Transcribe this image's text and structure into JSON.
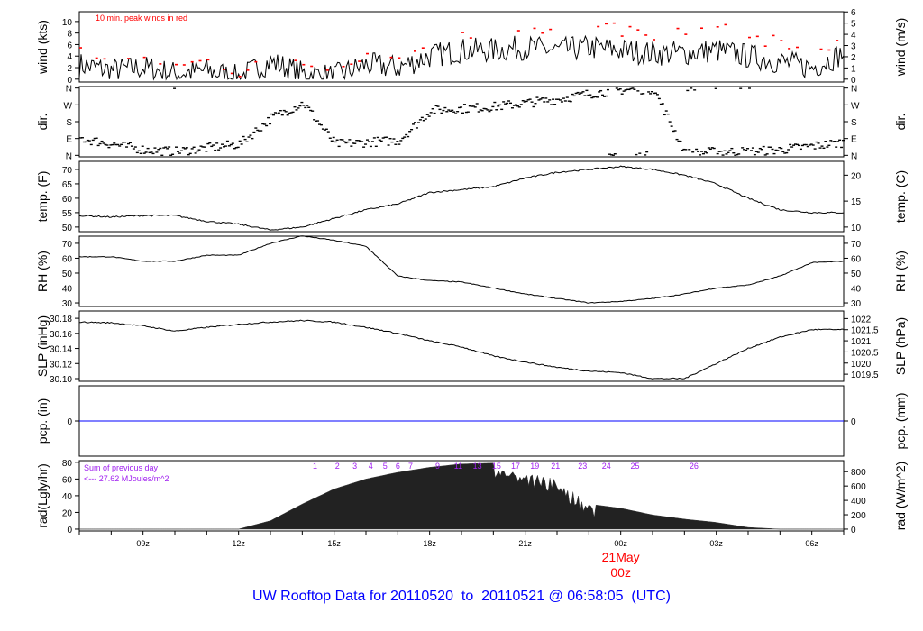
{
  "title": "UW Rooftop Data for 20110520  to  20110521 @ 06:58:05  (UTC)",
  "date_marker": {
    "day": "21May",
    "hour": "00z",
    "color": "#ff0000"
  },
  "wind_note": "10 min. peak winds in red",
  "rad_note": {
    "line1": "Sum of previous day",
    "line2": "<--- 27.62 MJoules/m^2",
    "color": "#a020f0"
  },
  "chart_data": {
    "type": "line",
    "x_unit": "hours UTC from 07:00z 20110520",
    "xlim": [
      0,
      24
    ],
    "x_ticks": [
      {
        "t": 2,
        "label": "09z"
      },
      {
        "t": 5,
        "label": "12z"
      },
      {
        "t": 8,
        "label": "15z"
      },
      {
        "t": 11,
        "label": "18z"
      },
      {
        "t": 14,
        "label": "21z"
      },
      {
        "t": 17,
        "label": "00z"
      },
      {
        "t": 20,
        "label": "03z"
      },
      {
        "t": 23,
        "label": "06z"
      }
    ],
    "hours": [
      0,
      1,
      2,
      3,
      4,
      5,
      6,
      7,
      8,
      9,
      10,
      11,
      12,
      13,
      14,
      15,
      16,
      17,
      18,
      19,
      20,
      21,
      22,
      23,
      24
    ],
    "panels": [
      {
        "id": "wind",
        "ylabel": "wind (kts)",
        "ylabel_right": "wind (m/s)",
        "ylim": [
          -0.5,
          11.7
        ],
        "ticks": [
          0,
          2,
          4,
          6,
          8,
          10
        ],
        "right_ticks": [
          0,
          1,
          2,
          3,
          4,
          5,
          6
        ],
        "right_factor": 1.944,
        "right_offset": 0,
        "values": [
          2.5,
          1.5,
          2,
          1,
          1.5,
          0.3,
          3,
          1,
          0.5,
          2.5,
          2,
          4,
          5,
          5,
          5.5,
          5,
          5.5,
          5,
          4.5,
          4.5,
          5,
          4,
          3,
          2,
          4.5
        ],
        "peaks": [
          5.5,
          3.5,
          3.8,
          2.5,
          3.5,
          0.5,
          5.5,
          2.5,
          1.5,
          4.5,
          4,
          6.5,
          8,
          9,
          10,
          10.5,
          10,
          9.5,
          9,
          8.5,
          9.5,
          8,
          7,
          5,
          7
        ]
      },
      {
        "id": "dir",
        "ylabel": "dir.",
        "ylabel_right": "dir.",
        "ylim": [
          -8,
          368
        ],
        "type": "scatter",
        "tick_vals": [
          0,
          90,
          180,
          270,
          360
        ],
        "tick_labels": [
          "N",
          "E",
          "S",
          "W",
          "N"
        ],
        "values": [
          90,
          60,
          30,
          20,
          40,
          60,
          200,
          280,
          60,
          70,
          80,
          240,
          250,
          260,
          280,
          300,
          330,
          350,
          355,
          10,
          20,
          20,
          30,
          50,
          70
        ]
      },
      {
        "id": "temp",
        "ylabel": "temp. (F)",
        "ylabel_right": "temp. (C)",
        "ylim": [
          48.4,
          72.8
        ],
        "ticks": [
          50,
          55,
          60,
          65,
          70
        ],
        "right_ticks": [
          10,
          15,
          20
        ],
        "right_factor": 1.8,
        "right_offset": 32,
        "values": [
          54,
          53.5,
          54,
          54,
          52,
          51,
          49,
          50,
          53,
          56,
          58,
          62,
          63,
          64,
          67,
          69,
          70,
          71,
          70,
          68,
          65,
          60,
          56,
          55,
          55
        ]
      },
      {
        "id": "rh",
        "ylabel": "RH (%)",
        "ylabel_right": "RH (%)",
        "ylim": [
          27.6,
          74.8
        ],
        "ticks": [
          30,
          40,
          50,
          60,
          70
        ],
        "right_ticks": [
          30,
          40,
          50,
          60,
          70
        ],
        "right_factor": 1,
        "right_offset": 0,
        "values": [
          61,
          61,
          58,
          58,
          62,
          62,
          70,
          75,
          72,
          68,
          48,
          45,
          44,
          40,
          36,
          33,
          30,
          31,
          33,
          36,
          40,
          42,
          48,
          57,
          58
        ]
      },
      {
        "id": "slp",
        "ylabel": "SLP (inHg)",
        "ylabel_right": "SLP (hPa)",
        "ylim": [
          30.0964,
          30.1897
        ],
        "ticks": [
          30.1,
          30.12,
          30.14,
          30.16,
          30.18
        ],
        "tick_fmt": 2,
        "right_ticks": [
          1019.5,
          1020,
          1020.5,
          1021,
          1021.5,
          1022
        ],
        "right_factor": 0.02953,
        "right_offset": 0,
        "values": [
          30.175,
          30.174,
          30.17,
          30.163,
          30.168,
          30.172,
          30.175,
          30.177,
          30.175,
          30.168,
          30.16,
          30.15,
          30.142,
          30.13,
          30.122,
          30.115,
          30.11,
          30.108,
          30.1,
          30.1,
          30.12,
          30.14,
          30.155,
          30.165,
          30.165
        ]
      },
      {
        "id": "pcp",
        "ylabel": "pcp. (in)",
        "ylabel_right": "pcp. (mm)",
        "ylim": [
          -1,
          1
        ],
        "ticks": [
          0
        ],
        "right_ticks": [
          0
        ],
        "right_factor": 0.03937,
        "right_offset": 0,
        "line_color": "#0000ff",
        "values": [
          0,
          0,
          0,
          0,
          0,
          0,
          0,
          0,
          0,
          0,
          0,
          0,
          0,
          0,
          0,
          0,
          0,
          0,
          0,
          0,
          0,
          0,
          0,
          0,
          0
        ]
      },
      {
        "id": "rad",
        "ylabel": "rad(Lgly/hr)",
        "ylabel_right": "rad (W/m^2)",
        "ylim": [
          -2.2,
          82
        ],
        "type": "area",
        "ticks": [
          0,
          20,
          40,
          60,
          80
        ],
        "right_ticks": [
          0,
          200,
          400,
          600,
          800
        ],
        "right_factor": 0.086,
        "right_offset": 0,
        "values": [
          0,
          0,
          0,
          0,
          0,
          0,
          10,
          30,
          48,
          60,
          68,
          74,
          78,
          79,
          70,
          60,
          30,
          25,
          17,
          12,
          8,
          2,
          0,
          0,
          0
        ],
        "cumulative_labels": [
          {
            "t": 7.4,
            "label": "1"
          },
          {
            "t": 8.1,
            "label": "2"
          },
          {
            "t": 8.65,
            "label": "3"
          },
          {
            "t": 9.15,
            "label": "4"
          },
          {
            "t": 9.6,
            "label": "5"
          },
          {
            "t": 10.0,
            "label": "6"
          },
          {
            "t": 10.4,
            "label": "7"
          },
          {
            "t": 11.25,
            "label": "9"
          },
          {
            "t": 11.9,
            "label": "11"
          },
          {
            "t": 12.5,
            "label": "13"
          },
          {
            "t": 13.1,
            "label": "15"
          },
          {
            "t": 13.7,
            "label": "17"
          },
          {
            "t": 14.3,
            "label": "19"
          },
          {
            "t": 14.95,
            "label": "21"
          },
          {
            "t": 15.8,
            "label": "23"
          },
          {
            "t": 16.55,
            "label": "24"
          },
          {
            "t": 17.45,
            "label": "25"
          },
          {
            "t": 19.3,
            "label": "26"
          }
        ]
      }
    ]
  }
}
